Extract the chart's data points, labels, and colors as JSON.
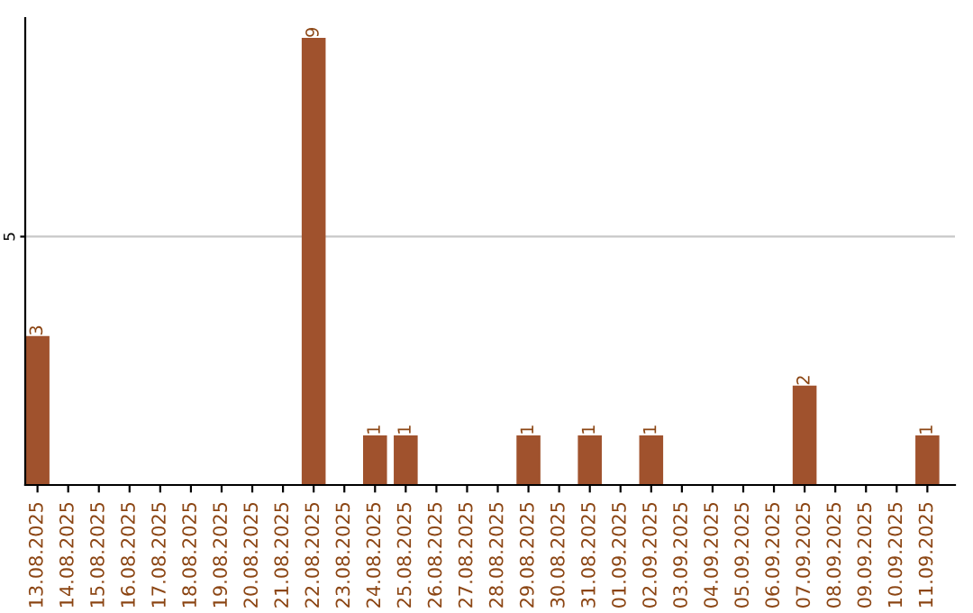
{
  "chart_data": {
    "type": "bar",
    "categories": [
      "13.08.2025",
      "14.08.2025",
      "15.08.2025",
      "16.08.2025",
      "17.08.2025",
      "18.08.2025",
      "19.08.2025",
      "20.08.2025",
      "21.08.2025",
      "22.08.2025",
      "23.08.2025",
      "24.08.2025",
      "25.08.2025",
      "26.08.2025",
      "27.08.2025",
      "28.08.2025",
      "29.08.2025",
      "30.08.2025",
      "31.08.2025",
      "01.09.2025",
      "02.09.2025",
      "03.09.2025",
      "04.09.2025",
      "05.09.2025",
      "06.09.2025",
      "07.09.2025",
      "08.09.2025",
      "09.09.2025",
      "10.09.2025",
      "11.09.2025"
    ],
    "values": [
      3,
      0,
      0,
      0,
      0,
      0,
      0,
      0,
      0,
      9,
      0,
      1,
      1,
      0,
      0,
      0,
      1,
      0,
      1,
      0,
      1,
      0,
      0,
      0,
      0,
      2,
      0,
      0,
      0,
      1
    ],
    "value_labels": [
      "3",
      null,
      null,
      null,
      null,
      null,
      null,
      null,
      null,
      "9",
      null,
      "1",
      "1",
      null,
      null,
      null,
      "1",
      null,
      "1",
      null,
      "1",
      null,
      null,
      null,
      null,
      "2",
      null,
      null,
      null,
      "1"
    ],
    "color": "#a0522d",
    "ylim": [
      0,
      9.4
    ],
    "yticks": [
      5
    ],
    "grid": "y"
  }
}
